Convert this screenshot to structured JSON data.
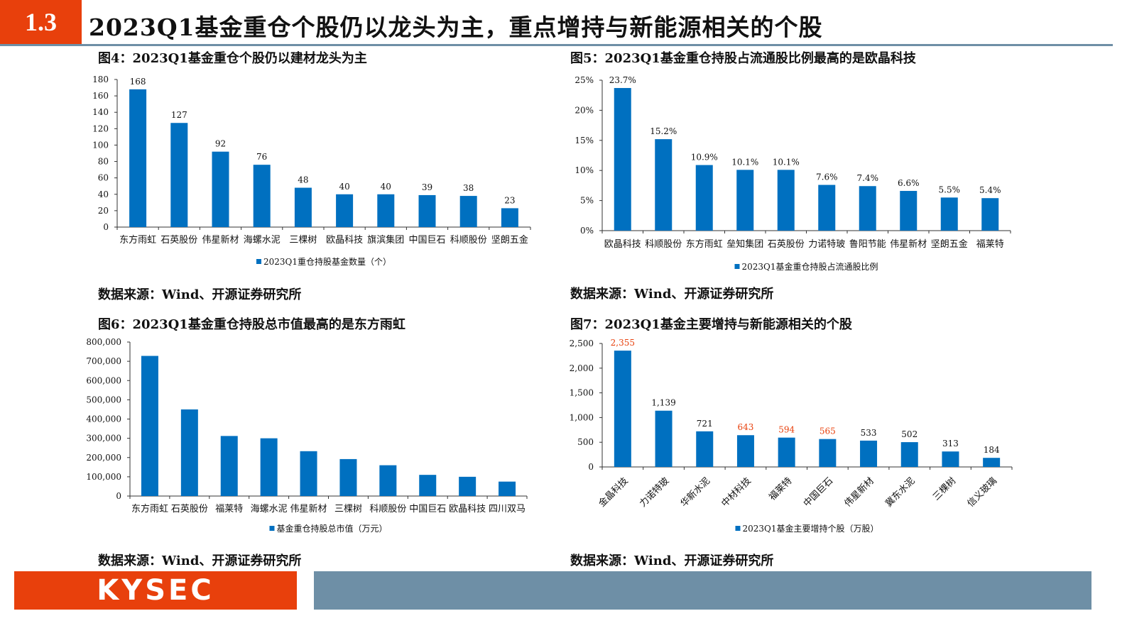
{
  "header": {
    "section": "1.3",
    "title": "2023Q1基金重仓个股仍以龙头为主，重点增持与新能源相关的个股"
  },
  "colors": {
    "bar": "#0070c0",
    "highlight": "#e8400c",
    "accent": "#e8400c",
    "header_line": "#6e8fa6"
  },
  "footer": {
    "logo": "KYSEC"
  },
  "chart_titles": [
    "图4：2023Q1基金重仓个股仍以建材龙头为主",
    "图5：2023Q1基金重仓持股占流通股比例最高的是欧晶科技",
    "图6：2023Q1基金重仓持股总市值最高的是东方雨虹",
    "图7：2023Q1基金主要增持与新能源相关的个股"
  ],
  "sources": [
    "数据来源：Wind、开源证券研究所",
    "数据来源：Wind、开源证券研究所",
    "数据来源：Wind、开源证券研究所",
    "数据来源：Wind、开源证券研究所"
  ],
  "chart_data": [
    {
      "type": "bar",
      "title": "图4：2023Q1基金重仓个股仍以建材龙头为主",
      "categories": [
        "东方雨虹",
        "石英股份",
        "伟星新材",
        "海螺水泥",
        "三棵树",
        "欧晶科技",
        "旗滨集团",
        "中国巨石",
        "科顺股份",
        "坚朗五金"
      ],
      "values": [
        168,
        127,
        92,
        76,
        48,
        40,
        40,
        39,
        38,
        23
      ],
      "data_labels": [
        "168",
        "127",
        "92",
        "76",
        "48",
        "40",
        "40",
        "39",
        "38",
        "23"
      ],
      "ylim": [
        0,
        180
      ],
      "yticks": [
        "0",
        "20",
        "40",
        "60",
        "80",
        "100",
        "120",
        "140",
        "160",
        "180"
      ],
      "legend": "2023Q1重仓持股基金数量（个）",
      "legend_position": "bottom",
      "highlight": []
    },
    {
      "type": "bar",
      "title": "图5：2023Q1基金重仓持股占流通股比例最高的是欧晶科技",
      "categories": [
        "欧晶科技",
        "科顺股份",
        "东方雨虹",
        "垒知集团",
        "石英股份",
        "力诺特玻",
        "鲁阳节能",
        "伟星新材",
        "坚朗五金",
        "福莱特"
      ],
      "values": [
        23.7,
        15.2,
        10.9,
        10.1,
        10.1,
        7.6,
        7.4,
        6.6,
        5.5,
        5.4
      ],
      "data_labels": [
        "23.7%",
        "15.2%",
        "10.9%",
        "10.1%",
        "10.1%",
        "7.6%",
        "7.4%",
        "6.6%",
        "5.5%",
        "5.4%"
      ],
      "ylim": [
        0,
        25
      ],
      "yticks": [
        "0%",
        "5%",
        "10%",
        "15%",
        "20%",
        "25%"
      ],
      "legend": "2023Q1基金重仓持股占流通股比例",
      "legend_position": "bottom",
      "highlight": []
    },
    {
      "type": "bar",
      "title": "图6：2023Q1基金重仓持股总市值最高的是东方雨虹",
      "categories": [
        "东方雨虹",
        "石英股份",
        "福莱特",
        "海螺水泥",
        "伟星新材",
        "三棵树",
        "科顺股份",
        "中国巨石",
        "欧晶科技",
        "四川双马"
      ],
      "values": [
        728000,
        450000,
        312000,
        300000,
        233000,
        192000,
        160000,
        110000,
        100000,
        75000
      ],
      "data_labels": [],
      "ylim": [
        0,
        800000
      ],
      "yticks": [
        "0",
        "100,000",
        "200,000",
        "300,000",
        "400,000",
        "500,000",
        "600,000",
        "700,000",
        "800,000"
      ],
      "legend": "基金重仓持股总市值（万元）",
      "legend_position": "bottom",
      "highlight": []
    },
    {
      "type": "bar",
      "title": "图7：2023Q1基金主要增持与新能源相关的个股",
      "categories": [
        "金晶科技",
        "力诺特玻",
        "华新水泥",
        "中材科技",
        "福莱特",
        "中国巨石",
        "伟星新材",
        "冀东水泥",
        "三棵树",
        "信义玻璃"
      ],
      "values": [
        2355,
        1139,
        721,
        643,
        594,
        565,
        533,
        502,
        313,
        184
      ],
      "data_labels": [
        "2,355",
        "1,139",
        "721",
        "643",
        "594",
        "565",
        "533",
        "502",
        "313",
        "184"
      ],
      "ylim": [
        0,
        2500
      ],
      "yticks": [
        "0",
        "500",
        "1,000",
        "1,500",
        "2,000",
        "2,500"
      ],
      "legend": "2023Q1基金主要增持个股（万股）",
      "legend_position": "bottom",
      "highlight": [
        0,
        3,
        4,
        5
      ]
    }
  ]
}
